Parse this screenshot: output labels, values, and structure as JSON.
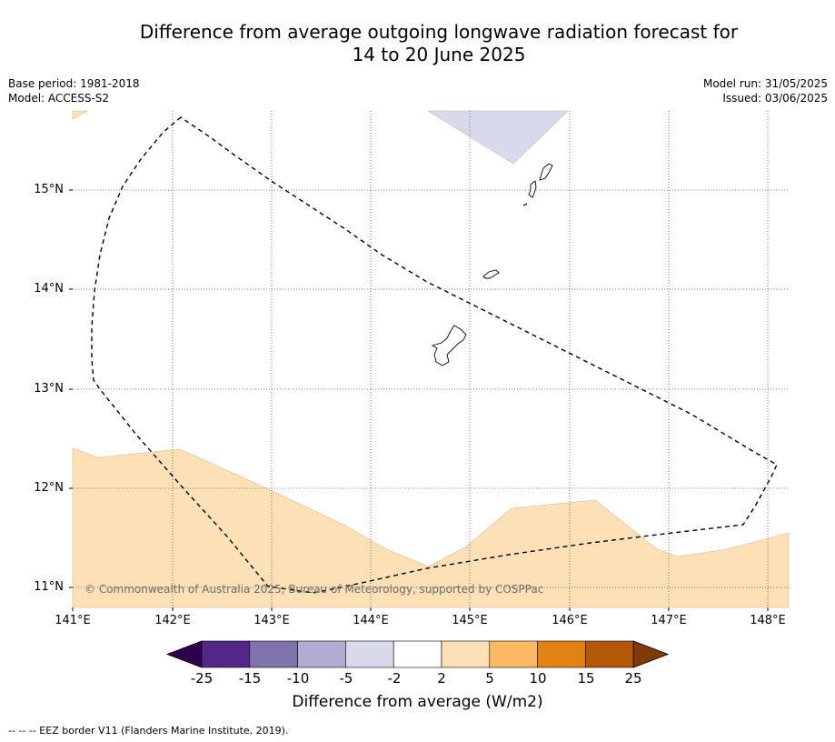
{
  "title_line1": "Difference from average outgoing longwave radiation forecast for",
  "title_line2": "14 to 20 June 2025",
  "base_period": "Base period: 1981-2018",
  "model": "Model: ACCESS-S2",
  "model_run": "Model run: 31/05/2025",
  "issued": "Issued: 03/06/2025",
  "credit": "© Commonwealth of Australia 2025, Bureau of Meteorology, supported by COSPPac",
  "lat_labels": [
    "15°N",
    "14°N",
    "13°N",
    "12°N",
    "11°N"
  ],
  "lon_labels": [
    "141°E",
    "142°E",
    "143°E",
    "144°E",
    "145°E",
    "146°E",
    "147°E",
    "148°E"
  ],
  "colorbar": {
    "title": "Difference from average (W/m2)",
    "ticks": [
      "-25",
      "-15",
      "-10",
      "-5",
      "-2",
      "2",
      "5",
      "10",
      "15",
      "25"
    ],
    "colors": [
      "#2d004b",
      "#542788",
      "#8073ac",
      "#b2abd2",
      "#d8daeb",
      "#ffffff",
      "#fee0b6",
      "#fdb863",
      "#e08214",
      "#b35806",
      "#7f3b08"
    ]
  },
  "footer": "--  --  -- EEZ border V11 (Flanders Marine Institute, 2019)."
}
